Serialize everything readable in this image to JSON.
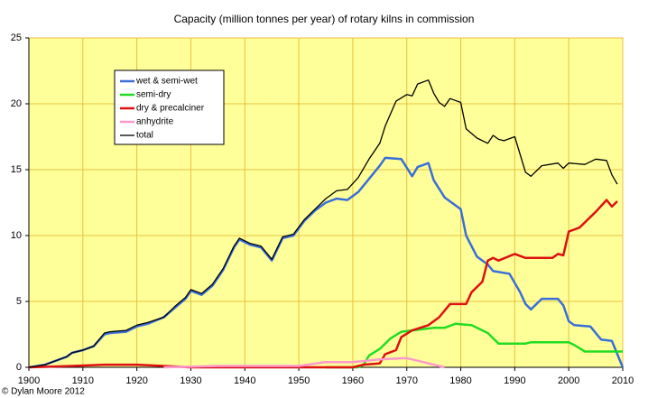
{
  "chart_data": {
    "type": "line",
    "title": "Capacity (million tonnes per year) of rotary kilns in commission",
    "credit": "© Dylan Moore 2012",
    "xlim": [
      1900,
      2010
    ],
    "xticks": [
      1900,
      1910,
      1920,
      1930,
      1940,
      1950,
      1960,
      1970,
      1980,
      1990,
      2000,
      2010
    ],
    "ylim": [
      0,
      25
    ],
    "yticks": [
      0,
      5,
      10,
      15,
      20,
      25
    ],
    "grid": true,
    "plot_background": "#ffff99",
    "grid_color": "#e8c040",
    "series": [
      {
        "name": "wet & semi-wet",
        "color": "#3a6fd8",
        "x": [
          1900,
          1903,
          1905,
          1907,
          1908,
          1910,
          1912,
          1914,
          1915,
          1918,
          1920,
          1922,
          1925,
          1927,
          1929,
          1930,
          1932,
          1934,
          1936,
          1938,
          1939,
          1941,
          1943,
          1945,
          1947,
          1949,
          1951,
          1953,
          1955,
          1957,
          1959,
          1961,
          1963,
          1965,
          1966,
          1969,
          1971,
          1972,
          1974,
          1975,
          1977,
          1980,
          1981,
          1983,
          1985,
          1986,
          1989,
          1991,
          1992,
          1993,
          1995,
          1998,
          1999,
          2000,
          2001,
          2004,
          2006,
          2008,
          2010
        ],
        "values": [
          0,
          0.2,
          0.5,
          0.8,
          1.1,
          1.3,
          1.6,
          2.5,
          2.6,
          2.7,
          3.1,
          3.3,
          3.8,
          4.5,
          5.2,
          5.8,
          5.5,
          6.2,
          7.4,
          9.1,
          9.7,
          9.3,
          9.1,
          8.1,
          9.8,
          10.0,
          11.1,
          11.9,
          12.5,
          12.8,
          12.7,
          13.3,
          14.3,
          15.3,
          15.9,
          15.8,
          14.5,
          15.2,
          15.5,
          14.2,
          12.9,
          12.0,
          10.0,
          8.4,
          7.8,
          7.3,
          7.1,
          5.7,
          4.8,
          4.4,
          5.2,
          5.2,
          4.7,
          3.5,
          3.2,
          3.1,
          2.1,
          2.0,
          0
        ]
      },
      {
        "name": "semi-dry",
        "color": "#22dd22",
        "x": [
          1955,
          1961,
          1962,
          1963,
          1965,
          1967,
          1969,
          1971,
          1975,
          1977,
          1979,
          1982,
          1985,
          1987,
          1992,
          1993,
          2000,
          2001,
          2003,
          2007,
          2010
        ],
        "values": [
          0,
          0,
          0.2,
          0.9,
          1.4,
          2.2,
          2.7,
          2.8,
          3.0,
          3.0,
          3.3,
          3.2,
          2.6,
          1.8,
          1.8,
          1.9,
          1.9,
          1.7,
          1.2,
          1.2,
          1.2
        ]
      },
      {
        "name": "dry & precalciner",
        "color": "#dd1111",
        "x": [
          1900,
          1908,
          1914,
          1920,
          1925,
          1930,
          1960,
          1962,
          1965,
          1966,
          1968,
          1969,
          1971,
          1974,
          1976,
          1978,
          1981,
          1982,
          1984,
          1985,
          1986,
          1987,
          1990,
          1992,
          1997,
          1998,
          1999,
          2000,
          2002,
          2005,
          2007,
          2008,
          2009
        ],
        "values": [
          0,
          0.1,
          0.2,
          0.2,
          0.1,
          0,
          0,
          0.2,
          0.3,
          1.0,
          1.3,
          2.3,
          2.8,
          3.2,
          3.8,
          4.8,
          4.8,
          5.7,
          6.5,
          8.1,
          8.3,
          8.1,
          8.6,
          8.3,
          8.3,
          8.6,
          8.5,
          10.3,
          10.6,
          11.8,
          12.7,
          12.2,
          12.6
        ]
      },
      {
        "name": "anhydrite",
        "color": "#ff99cc",
        "x": [
          1925,
          1930,
          1935,
          1950,
          1955,
          1960,
          1965,
          1970,
          1972,
          1975,
          1977
        ],
        "values": [
          0,
          0.05,
          0.1,
          0.1,
          0.4,
          0.4,
          0.6,
          0.7,
          0.5,
          0.2,
          0
        ]
      },
      {
        "name": "total",
        "color": "#000000",
        "x": [
          1900,
          1903,
          1905,
          1907,
          1908,
          1910,
          1912,
          1914,
          1915,
          1918,
          1920,
          1922,
          1925,
          1927,
          1929,
          1930,
          1932,
          1934,
          1936,
          1938,
          1939,
          1941,
          1943,
          1945,
          1947,
          1949,
          1951,
          1953,
          1955,
          1957,
          1959,
          1961,
          1963,
          1965,
          1966,
          1968,
          1970,
          1971,
          1972,
          1974,
          1975,
          1976,
          1977,
          1978,
          1980,
          1981,
          1983,
          1985,
          1986,
          1987,
          1988,
          1990,
          1992,
          1993,
          1995,
          1998,
          1999,
          2000,
          2003,
          2005,
          2007,
          2008,
          2009
        ],
        "values": [
          0,
          0.2,
          0.5,
          0.8,
          1.1,
          1.3,
          1.6,
          2.6,
          2.7,
          2.8,
          3.2,
          3.4,
          3.8,
          4.6,
          5.3,
          5.9,
          5.6,
          6.3,
          7.5,
          9.2,
          9.8,
          9.4,
          9.2,
          8.2,
          9.9,
          10.1,
          11.2,
          12.0,
          12.8,
          13.4,
          13.5,
          14.4,
          15.8,
          17.0,
          18.3,
          20.2,
          20.7,
          20.6,
          21.5,
          21.8,
          20.8,
          20.1,
          19.8,
          20.4,
          20.1,
          18.1,
          17.4,
          17.0,
          17.6,
          17.3,
          17.2,
          17.5,
          14.8,
          14.5,
          15.3,
          15.5,
          15.1,
          15.5,
          15.4,
          15.8,
          15.7,
          14.6,
          13.9
        ]
      }
    ]
  }
}
